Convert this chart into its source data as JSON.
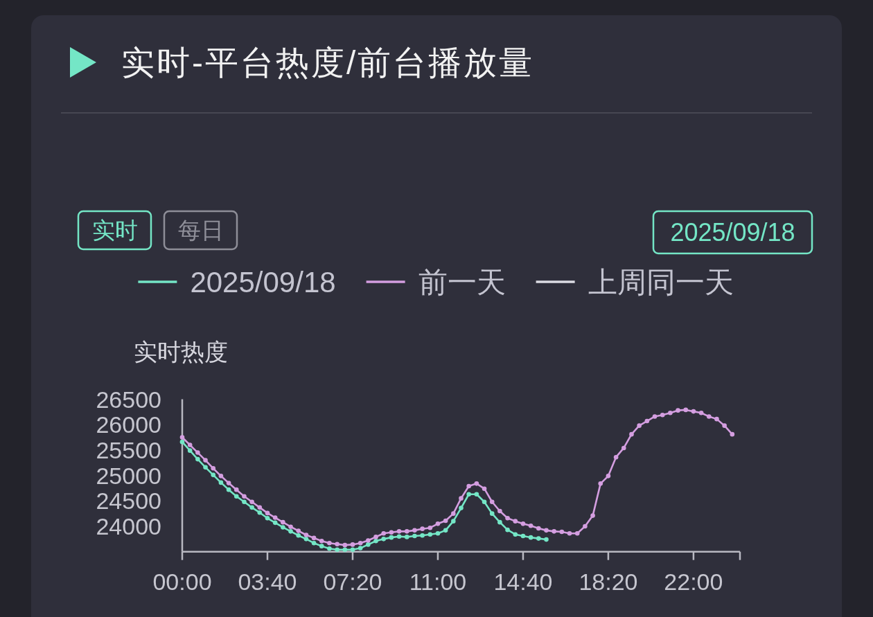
{
  "chart_data": {
    "type": "line",
    "title": "实时-平台热度/前台播放量",
    "ylabel": "实时热度",
    "annotations": [
      "实时",
      "每日",
      "2025/09/18"
    ],
    "x": [
      0,
      0.3333,
      0.6667,
      1,
      1.3333,
      1.6667,
      2,
      2.3333,
      2.6667,
      3,
      3.3333,
      3.6667,
      4,
      4.3333,
      4.6667,
      5,
      5.3333,
      5.6667,
      6,
      6.3333,
      6.6667,
      7,
      7.3333,
      7.6667,
      8,
      8.3333,
      8.6667,
      9,
      9.3333,
      9.6667,
      10,
      10.3333,
      10.6667,
      11,
      11.3333,
      11.6667,
      12,
      12.3333,
      12.6667,
      13,
      13.3333,
      13.6667,
      14,
      14.3333,
      14.6667,
      15,
      15.3333,
      15.6667,
      16,
      16.3333,
      16.6667,
      17,
      17.3333,
      17.6667,
      18,
      18.3333,
      18.6667,
      19,
      19.3333,
      19.6667,
      20,
      20.3333,
      20.6667,
      21,
      21.3333,
      21.6667,
      22,
      22.3333,
      22.6667,
      23,
      23.3333,
      23.6667
    ],
    "xlim": [
      0,
      24
    ],
    "xticks": [
      {
        "value": 0,
        "label": "00:00"
      },
      {
        "value": 3.6667,
        "label": "03:40"
      },
      {
        "value": 7.3333,
        "label": "07:20"
      },
      {
        "value": 11,
        "label": "11:00"
      },
      {
        "value": 14.6667,
        "label": "14:40"
      },
      {
        "value": 18.3333,
        "label": "18:20"
      },
      {
        "value": 22,
        "label": "22:00"
      },
      {
        "value": 24,
        "label": null
      }
    ],
    "ylim": [
      23500,
      26500
    ],
    "yticks": [
      24000,
      24500,
      25000,
      25500,
      26000,
      26500
    ],
    "legend": "top",
    "marker": "circle",
    "line_style": "solid",
    "series": [
      {
        "name": "2025/09/18",
        "color": "#74e6c6",
        "values": [
          25660,
          25490,
          25320,
          25160,
          25010,
          24860,
          24720,
          24590,
          24480,
          24370,
          24270,
          24160,
          24070,
          23980,
          23900,
          23820,
          23750,
          23670,
          23610,
          23560,
          23540,
          23540,
          23540,
          23570,
          23640,
          23710,
          23750,
          23780,
          23800,
          23790,
          23810,
          23820,
          23840,
          23860,
          23920,
          24100,
          24360,
          24630,
          24630,
          24480,
          24250,
          24080,
          23930,
          23840,
          23810,
          23780,
          23760,
          23740,
          null,
          null,
          null,
          null,
          null,
          null,
          null,
          null,
          null,
          null,
          null,
          null,
          null,
          null,
          null,
          null,
          null,
          null,
          null,
          null,
          null,
          null,
          null,
          null
        ]
      },
      {
        "name": "前一天",
        "color": "#d49ee0",
        "values": [
          25750,
          25600,
          25450,
          25300,
          25140,
          24990,
          24850,
          24720,
          24590,
          24480,
          24370,
          24260,
          24170,
          24080,
          23990,
          23910,
          23830,
          23770,
          23710,
          23670,
          23650,
          23630,
          23640,
          23670,
          23720,
          23790,
          23860,
          23880,
          23900,
          23900,
          23920,
          23950,
          23970,
          24050,
          24110,
          24250,
          24550,
          24790,
          24840,
          24740,
          24480,
          24300,
          24160,
          24100,
          24050,
          24010,
          23960,
          23920,
          23900,
          23890,
          23860,
          23860,
          24000,
          24210,
          24840,
          24990,
          25360,
          25540,
          25810,
          25980,
          26070,
          26160,
          26190,
          26230,
          26280,
          26290,
          26260,
          26230,
          26160,
          26110,
          25980,
          25810
        ]
      },
      {
        "name": "上周同一天",
        "color": "#dcdce4",
        "values": [
          null,
          null,
          null,
          null,
          null,
          null,
          null,
          null,
          null,
          null,
          null,
          null,
          null,
          null,
          null,
          null,
          null,
          null,
          null,
          null,
          null,
          null,
          null,
          null,
          null,
          null,
          null,
          null,
          null,
          null,
          null,
          null,
          null,
          null,
          null,
          null,
          null,
          null,
          null,
          null,
          null,
          null,
          null,
          null,
          null,
          null,
          null,
          null,
          null,
          null,
          null,
          null,
          null,
          null,
          null,
          null,
          null,
          null,
          null,
          null,
          null,
          null,
          null,
          null,
          null,
          null,
          null,
          null,
          null,
          null,
          null,
          null
        ]
      }
    ]
  }
}
